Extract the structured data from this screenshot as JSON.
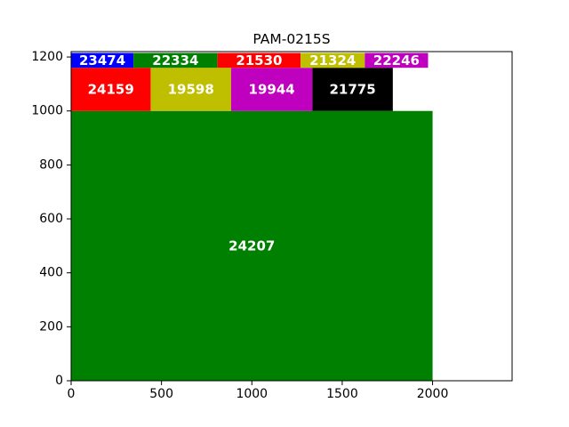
{
  "chart_data": {
    "type": "treemap",
    "title": "PAM-0215S",
    "xlabel": "",
    "ylabel": "",
    "xlim": [
      0,
      2440
    ],
    "ylim": [
      0,
      1220
    ],
    "grid": false,
    "x_ticks": [
      0,
      500,
      1000,
      1500,
      2000
    ],
    "y_ticks": [
      0,
      200,
      400,
      600,
      800,
      1000,
      1200
    ],
    "rects": [
      {
        "label": "24207",
        "x0": 0,
        "x1": 2000,
        "y0": 0,
        "y1": 1000,
        "color": "#008000"
      },
      {
        "label": "24159",
        "x0": 0,
        "x1": 440,
        "y0": 1000,
        "y1": 1160,
        "color": "#ff0000"
      },
      {
        "label": "19598",
        "x0": 440,
        "x1": 885,
        "y0": 1000,
        "y1": 1160,
        "color": "#bfbf00"
      },
      {
        "label": "19944",
        "x0": 885,
        "x1": 1335,
        "y0": 1000,
        "y1": 1160,
        "color": "#bf00bf"
      },
      {
        "label": "21775",
        "x0": 1335,
        "x1": 1780,
        "y0": 1000,
        "y1": 1160,
        "color": "#000000"
      },
      {
        "label": "23474",
        "x0": 0,
        "x1": 345,
        "y0": 1160,
        "y1": 1215,
        "color": "#0000ff"
      },
      {
        "label": "22334",
        "x0": 345,
        "x1": 810,
        "y0": 1160,
        "y1": 1215,
        "color": "#008000"
      },
      {
        "label": "21530",
        "x0": 810,
        "x1": 1270,
        "y0": 1160,
        "y1": 1215,
        "color": "#ff0000"
      },
      {
        "label": "21324",
        "x0": 1270,
        "x1": 1625,
        "y0": 1160,
        "y1": 1215,
        "color": "#bfbf00"
      },
      {
        "label": "22246",
        "x0": 1625,
        "x1": 1975,
        "y0": 1160,
        "y1": 1215,
        "color": "#bf00bf"
      }
    ]
  }
}
